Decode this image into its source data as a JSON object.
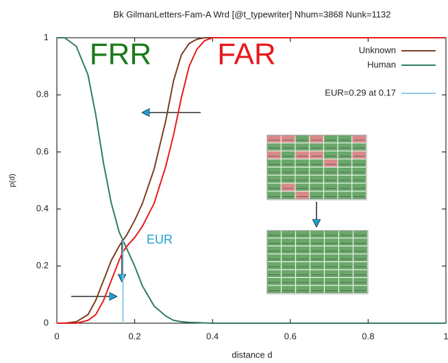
{
  "chart_data": {
    "type": "line",
    "title": "Bk GilmanLetters-Fam-A Wrd [@t_typewriter] Nhum=3868 Nunk=1132",
    "xlabel": "distance d",
    "ylabel": "p(d)",
    "x": [
      0,
      0.02,
      0.05,
      0.08,
      0.1,
      0.12,
      0.14,
      0.16,
      0.17,
      0.18,
      0.2,
      0.22,
      0.25,
      0.28,
      0.3,
      0.32,
      0.34,
      0.36,
      0.38,
      0.4,
      0.5,
      0.7,
      1
    ],
    "series": [
      {
        "name": "Unknown",
        "color": "#7a3d1e",
        "values": [
          0,
          0,
          0.005,
          0.03,
          0.08,
          0.15,
          0.22,
          0.27,
          0.29,
          0.31,
          0.36,
          0.42,
          0.54,
          0.71,
          0.85,
          0.94,
          0.98,
          0.995,
          1,
          1,
          1,
          1,
          1
        ]
      },
      {
        "name": "Human",
        "color": "#2e7d5a",
        "values": [
          1,
          1,
          0.97,
          0.87,
          0.73,
          0.56,
          0.42,
          0.32,
          0.29,
          0.26,
          0.2,
          0.13,
          0.06,
          0.025,
          0.01,
          0.005,
          0.003,
          0.002,
          0.001,
          0,
          0,
          0,
          0
        ]
      },
      {
        "color": "#e8191b",
        "values": [
          0,
          0,
          0,
          0.01,
          0.03,
          0.08,
          0.15,
          0.22,
          0.25,
          0.27,
          0.3,
          0.34,
          0.42,
          0.55,
          0.66,
          0.79,
          0.9,
          0.96,
          0.99,
          1,
          1,
          1,
          1
        ]
      }
    ],
    "eur": {
      "label": "EUR=0.29 at 0.17",
      "x": 0.17,
      "y": 0.29,
      "color": "#8ecae6"
    },
    "annotations": [
      "FRR",
      "FAR",
      "EUR"
    ],
    "xlim": [
      0,
      1
    ],
    "ylim": [
      0,
      1
    ],
    "xticks": [
      0,
      0.2,
      0.4,
      0.6,
      0.8,
      1
    ],
    "yticks": [
      0,
      0.2,
      0.4,
      0.6,
      0.8,
      1
    ],
    "grid": false,
    "legend": "top right"
  }
}
